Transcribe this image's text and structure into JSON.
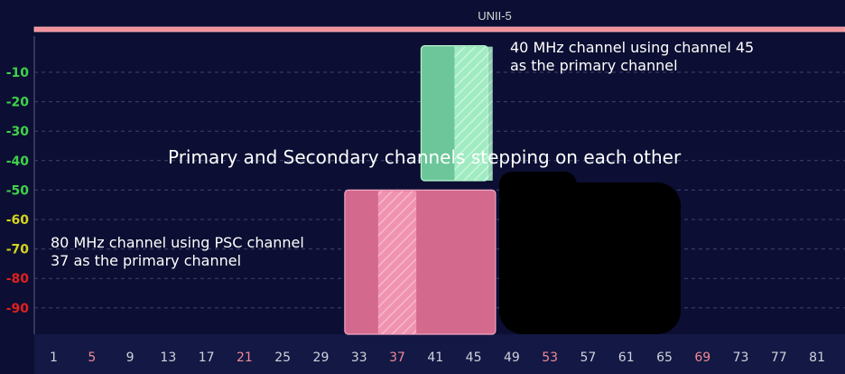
{
  "chart_data": {
    "type": "bar",
    "title": "",
    "band": {
      "label": "UNII-5",
      "color": "#f0909a"
    },
    "ylim": [
      -100,
      0
    ],
    "y_ticks": [
      {
        "value": -10,
        "label": "-10",
        "color": "#3fd24a"
      },
      {
        "value": -20,
        "label": "-20",
        "color": "#3fd24a"
      },
      {
        "value": -30,
        "label": "-30",
        "color": "#3fd24a"
      },
      {
        "value": -40,
        "label": "-40",
        "color": "#3fd24a"
      },
      {
        "value": -50,
        "label": "-50",
        "color": "#3fd24a"
      },
      {
        "value": -60,
        "label": "-60",
        "color": "#d4d41e"
      },
      {
        "value": -70,
        "label": "-70",
        "color": "#d4d41e"
      },
      {
        "value": -80,
        "label": "-80",
        "color": "#e0201e"
      },
      {
        "value": -90,
        "label": "-90",
        "color": "#e0201e"
      }
    ],
    "x_ticks": [
      {
        "value": 1,
        "label": "1",
        "highlight": false
      },
      {
        "value": 5,
        "label": "5",
        "highlight": true
      },
      {
        "value": 9,
        "label": "9",
        "highlight": false
      },
      {
        "value": 13,
        "label": "13",
        "highlight": false
      },
      {
        "value": 17,
        "label": "17",
        "highlight": false
      },
      {
        "value": 21,
        "label": "21",
        "highlight": true
      },
      {
        "value": 25,
        "label": "25",
        "highlight": false
      },
      {
        "value": 29,
        "label": "29",
        "highlight": false
      },
      {
        "value": 33,
        "label": "33",
        "highlight": false
      },
      {
        "value": 37,
        "label": "37",
        "highlight": true
      },
      {
        "value": 41,
        "label": "41",
        "highlight": false
      },
      {
        "value": 45,
        "label": "45",
        "highlight": false
      },
      {
        "value": 49,
        "label": "49",
        "highlight": false
      },
      {
        "value": 53,
        "label": "53",
        "highlight": true
      },
      {
        "value": 57,
        "label": "57",
        "highlight": false
      },
      {
        "value": 61,
        "label": "61",
        "highlight": false
      },
      {
        "value": 65,
        "label": "65",
        "highlight": false
      },
      {
        "value": 69,
        "label": "69",
        "highlight": true
      },
      {
        "value": 73,
        "label": "73",
        "highlight": false
      },
      {
        "value": 77,
        "label": "77",
        "highlight": false
      },
      {
        "value": 81,
        "label": "81",
        "highlight": false
      }
    ],
    "tick_color": "#cfd2dc",
    "highlight_tick_color": "#ef8a94",
    "channels": [
      {
        "width_mhz": 40,
        "primary_channel": 45,
        "x_start": 39.5,
        "x_end": 46.5,
        "level_dbm": -1,
        "fill": "#6cc69a",
        "primary_fill": "#a9f2c8"
      },
      {
        "width_mhz": 80,
        "primary_channel": 37,
        "x_start": 31.5,
        "x_end": 47.3,
        "level_dbm": -50,
        "fill": "#d4698e",
        "primary_fill": "#f49ab6"
      }
    ],
    "annotations": {
      "ch40_line1": "40 MHz channel using channel 45",
      "ch40_line2": "as the primary channel",
      "ch80_line1": "80 MHz channel using PSC channel",
      "ch80_line2": "37 as the primary channel",
      "overlap": "Primary and Secondary channels stepping on each other"
    }
  }
}
